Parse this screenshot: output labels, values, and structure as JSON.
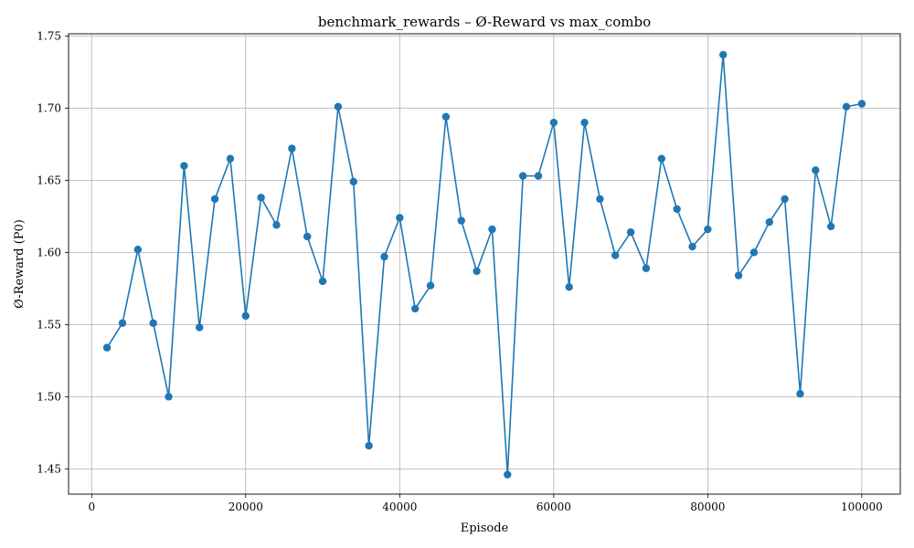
{
  "chart_data": {
    "type": "line",
    "title": "benchmark_rewards – Ø-Reward vs max_combo",
    "xlabel": "Episode",
    "ylabel": "Ø-Reward (P0)",
    "xlim": [
      -3000,
      105000
    ],
    "ylim": [
      1.4325,
      1.7515
    ],
    "xticks": [
      0,
      20000,
      40000,
      60000,
      80000,
      100000
    ],
    "yticks": [
      1.45,
      1.5,
      1.55,
      1.6,
      1.65,
      1.7,
      1.75
    ],
    "xtick_labels": [
      "0",
      "20000",
      "40000",
      "60000",
      "80000",
      "100000"
    ],
    "ytick_labels": [
      "1.45",
      "1.50",
      "1.55",
      "1.60",
      "1.65",
      "1.70",
      "1.75"
    ],
    "grid": true,
    "color": "#1f77b4",
    "marker": "circle",
    "x": [
      2000,
      4000,
      6000,
      8000,
      10000,
      12000,
      14000,
      16000,
      18000,
      20000,
      22000,
      24000,
      26000,
      28000,
      30000,
      32000,
      34000,
      36000,
      38000,
      40000,
      42000,
      44000,
      46000,
      48000,
      50000,
      52000,
      54000,
      56000,
      58000,
      60000,
      62000,
      64000,
      66000,
      68000,
      70000,
      72000,
      74000,
      76000,
      78000,
      80000,
      82000,
      84000,
      86000,
      88000,
      90000,
      92000,
      94000,
      96000,
      98000,
      100000
    ],
    "y": [
      1.534,
      1.551,
      1.602,
      1.551,
      1.5,
      1.66,
      1.548,
      1.637,
      1.665,
      1.556,
      1.638,
      1.619,
      1.672,
      1.611,
      1.58,
      1.701,
      1.649,
      1.466,
      1.597,
      1.624,
      1.561,
      1.577,
      1.694,
      1.622,
      1.587,
      1.616,
      1.446,
      1.653,
      1.653,
      1.69,
      1.576,
      1.69,
      1.637,
      1.598,
      1.614,
      1.589,
      1.665,
      1.63,
      1.604,
      1.616,
      1.737,
      1.584,
      1.6,
      1.621,
      1.637,
      1.502,
      1.657,
      1.618,
      1.701,
      1.703
    ]
  }
}
